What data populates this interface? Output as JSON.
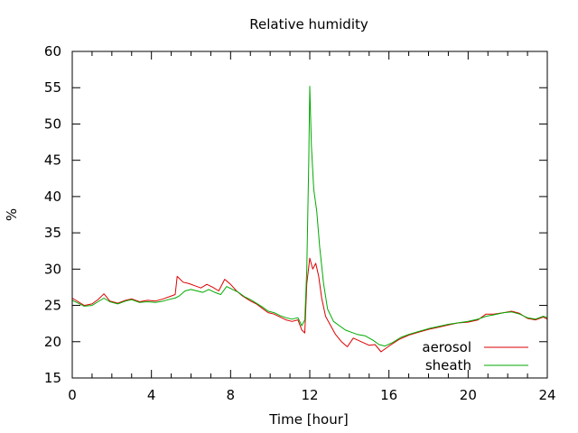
{
  "chart_data": {
    "type": "line",
    "title": "Relative humidity",
    "xlabel": "Time [hour]",
    "ylabel": "%",
    "xlim": [
      0,
      24
    ],
    "ylim": [
      15,
      60
    ],
    "xticks": [
      0,
      4,
      8,
      12,
      16,
      20,
      24
    ],
    "yticks": [
      15,
      20,
      25,
      30,
      35,
      40,
      45,
      50,
      55,
      60
    ],
    "grid": false,
    "legend_position": "bottom-right",
    "series": [
      {
        "name": "aerosol",
        "color": "#dd0000",
        "points": [
          [
            0,
            26.0
          ],
          [
            0.3,
            25.5
          ],
          [
            0.6,
            25.0
          ],
          [
            1.0,
            25.2
          ],
          [
            1.3,
            25.8
          ],
          [
            1.6,
            26.6
          ],
          [
            1.9,
            25.6
          ],
          [
            2.3,
            25.3
          ],
          [
            2.7,
            25.7
          ],
          [
            3.0,
            25.9
          ],
          [
            3.4,
            25.5
          ],
          [
            3.8,
            25.7
          ],
          [
            4.2,
            25.6
          ],
          [
            4.6,
            25.9
          ],
          [
            5.0,
            26.3
          ],
          [
            5.2,
            26.5
          ],
          [
            5.3,
            29.0
          ],
          [
            5.6,
            28.2
          ],
          [
            5.9,
            28.0
          ],
          [
            6.2,
            27.7
          ],
          [
            6.5,
            27.4
          ],
          [
            6.8,
            27.9
          ],
          [
            7.1,
            27.5
          ],
          [
            7.4,
            27.0
          ],
          [
            7.7,
            28.6
          ],
          [
            8.0,
            27.9
          ],
          [
            8.3,
            27.0
          ],
          [
            8.6,
            26.3
          ],
          [
            9.0,
            25.6
          ],
          [
            9.3,
            25.2
          ],
          [
            9.6,
            24.6
          ],
          [
            9.9,
            24.0
          ],
          [
            10.2,
            23.8
          ],
          [
            10.5,
            23.4
          ],
          [
            10.8,
            23.0
          ],
          [
            11.1,
            22.8
          ],
          [
            11.4,
            23.0
          ],
          [
            11.6,
            21.6
          ],
          [
            11.75,
            21.2
          ],
          [
            11.85,
            28.0
          ],
          [
            12.0,
            31.5
          ],
          [
            12.15,
            30.0
          ],
          [
            12.3,
            30.8
          ],
          [
            12.45,
            29.0
          ],
          [
            12.6,
            26.0
          ],
          [
            12.8,
            23.5
          ],
          [
            13.0,
            22.5
          ],
          [
            13.3,
            21.0
          ],
          [
            13.6,
            20.0
          ],
          [
            13.9,
            19.3
          ],
          [
            14.2,
            20.5
          ],
          [
            14.6,
            20.0
          ],
          [
            15.0,
            19.5
          ],
          [
            15.3,
            19.6
          ],
          [
            15.6,
            18.6
          ],
          [
            16.0,
            19.4
          ],
          [
            16.5,
            20.3
          ],
          [
            17.0,
            20.9
          ],
          [
            17.5,
            21.3
          ],
          [
            18.0,
            21.7
          ],
          [
            18.5,
            22.0
          ],
          [
            19.0,
            22.3
          ],
          [
            19.5,
            22.6
          ],
          [
            20.0,
            22.7
          ],
          [
            20.5,
            23.0
          ],
          [
            20.9,
            23.8
          ],
          [
            21.3,
            23.8
          ],
          [
            21.8,
            24.0
          ],
          [
            22.2,
            24.2
          ],
          [
            22.6,
            23.9
          ],
          [
            23.0,
            23.2
          ],
          [
            23.4,
            23.0
          ],
          [
            23.8,
            23.4
          ],
          [
            24.0,
            23.1
          ]
        ]
      },
      {
        "name": "sheath",
        "color": "#00aa00",
        "points": [
          [
            0,
            25.7
          ],
          [
            0.3,
            25.3
          ],
          [
            0.6,
            24.9
          ],
          [
            1.0,
            25.0
          ],
          [
            1.3,
            25.5
          ],
          [
            1.6,
            26.0
          ],
          [
            1.9,
            25.5
          ],
          [
            2.3,
            25.2
          ],
          [
            2.7,
            25.6
          ],
          [
            3.0,
            25.8
          ],
          [
            3.4,
            25.4
          ],
          [
            3.8,
            25.5
          ],
          [
            4.2,
            25.4
          ],
          [
            4.6,
            25.6
          ],
          [
            5.0,
            25.9
          ],
          [
            5.2,
            26.0
          ],
          [
            5.4,
            26.3
          ],
          [
            5.7,
            27.0
          ],
          [
            6.0,
            27.2
          ],
          [
            6.3,
            27.0
          ],
          [
            6.6,
            26.8
          ],
          [
            6.9,
            27.2
          ],
          [
            7.2,
            26.8
          ],
          [
            7.5,
            26.5
          ],
          [
            7.8,
            27.6
          ],
          [
            8.1,
            27.2
          ],
          [
            8.4,
            26.8
          ],
          [
            8.7,
            26.2
          ],
          [
            9.0,
            25.8
          ],
          [
            9.3,
            25.3
          ],
          [
            9.6,
            24.8
          ],
          [
            9.9,
            24.2
          ],
          [
            10.2,
            24.0
          ],
          [
            10.5,
            23.6
          ],
          [
            10.8,
            23.3
          ],
          [
            11.1,
            23.1
          ],
          [
            11.4,
            23.3
          ],
          [
            11.6,
            22.2
          ],
          [
            11.75,
            23.0
          ],
          [
            11.85,
            30.0
          ],
          [
            11.95,
            45.0
          ],
          [
            12.0,
            55.2
          ],
          [
            12.08,
            47.0
          ],
          [
            12.2,
            41.0
          ],
          [
            12.35,
            38.0
          ],
          [
            12.5,
            33.0
          ],
          [
            12.7,
            28.0
          ],
          [
            12.9,
            24.5
          ],
          [
            13.2,
            22.8
          ],
          [
            13.5,
            22.2
          ],
          [
            13.8,
            21.6
          ],
          [
            14.1,
            21.3
          ],
          [
            14.4,
            21.0
          ],
          [
            14.8,
            20.8
          ],
          [
            15.2,
            20.2
          ],
          [
            15.5,
            19.6
          ],
          [
            15.8,
            19.4
          ],
          [
            16.2,
            19.9
          ],
          [
            16.6,
            20.6
          ],
          [
            17.0,
            21.0
          ],
          [
            17.5,
            21.4
          ],
          [
            18.0,
            21.8
          ],
          [
            18.5,
            22.1
          ],
          [
            19.0,
            22.4
          ],
          [
            19.5,
            22.6
          ],
          [
            20.0,
            22.8
          ],
          [
            20.5,
            23.1
          ],
          [
            20.9,
            23.5
          ],
          [
            21.3,
            23.7
          ],
          [
            21.8,
            24.0
          ],
          [
            22.2,
            24.1
          ],
          [
            22.6,
            23.8
          ],
          [
            23.0,
            23.3
          ],
          [
            23.4,
            23.1
          ],
          [
            23.8,
            23.5
          ],
          [
            24.0,
            23.3
          ]
        ]
      }
    ]
  }
}
